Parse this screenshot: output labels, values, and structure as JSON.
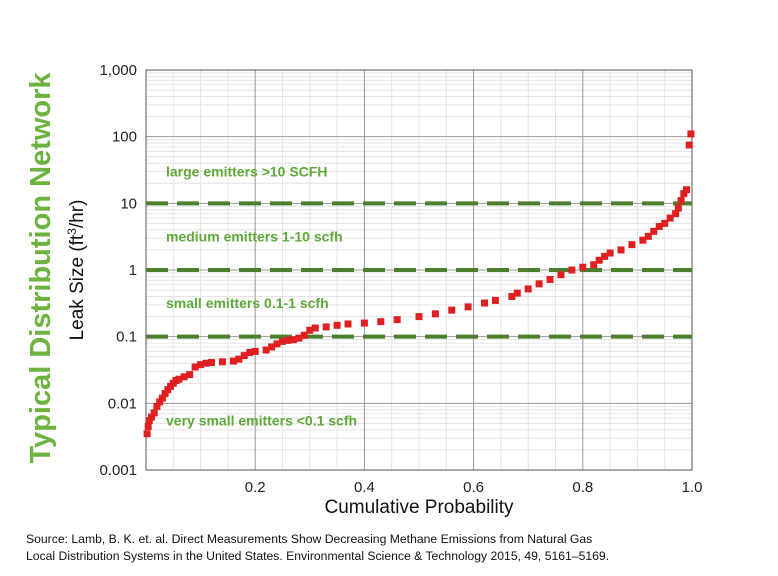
{
  "side_title": "Typical Distribution Network",
  "source_lines": [
    "Source: Lamb, B. K. et. al. Direct Measurements Show Decreasing Methane Emissions from Natural Gas",
    "Local Distribution Systems in the United States. Environmental Science & Technology 2015, 49, 5161–5169."
  ],
  "colors": {
    "title_green": "#6db33f",
    "band_green": "#4a7f2b",
    "annotation_green": "#5fa83a",
    "series_red": "#e02020"
  },
  "chart_data": {
    "type": "scatter",
    "xlabel": "Cumulative Probability",
    "ylabel_main": "Leak Size (ft",
    "ylabel_sup": "3",
    "ylabel_tail": "/hr)",
    "xlim": [
      0,
      1
    ],
    "ylim": [
      0.001,
      1000
    ],
    "yscale": "log",
    "grid": true,
    "xticks": [
      0.2,
      0.4,
      0.6,
      0.8,
      1.0
    ],
    "xtick_labels": [
      "0.2",
      "0.4",
      "0.6",
      "0.8",
      "1.0"
    ],
    "yticks": [
      0.001,
      0.01,
      0.1,
      1,
      10,
      100,
      1000
    ],
    "ytick_labels": [
      "0.001",
      "0.01",
      "0.1",
      "1",
      "10",
      "100",
      "1,000"
    ],
    "thresholds": [
      0.1,
      1,
      10
    ],
    "annotations": [
      {
        "text": "large emitters  >10 SCFH",
        "y": 30
      },
      {
        "text": "medium emitters  1-10 scfh",
        "y": 3.2
      },
      {
        "text": "small emitters  0.1-1 scfh",
        "y": 0.32
      },
      {
        "text": "very small emitters  <0.1 scfh",
        "y": 0.0055
      }
    ],
    "series": [
      {
        "points": [
          [
            0.002,
            0.0035
          ],
          [
            0.004,
            0.0045
          ],
          [
            0.006,
            0.0055
          ],
          [
            0.01,
            0.0062
          ],
          [
            0.015,
            0.0072
          ],
          [
            0.02,
            0.009
          ],
          [
            0.025,
            0.0105
          ],
          [
            0.03,
            0.012
          ],
          [
            0.035,
            0.014
          ],
          [
            0.04,
            0.016
          ],
          [
            0.045,
            0.018
          ],
          [
            0.05,
            0.02
          ],
          [
            0.055,
            0.022
          ],
          [
            0.06,
            0.023
          ],
          [
            0.07,
            0.025
          ],
          [
            0.08,
            0.027
          ],
          [
            0.09,
            0.035
          ],
          [
            0.1,
            0.038
          ],
          [
            0.11,
            0.04
          ],
          [
            0.12,
            0.041
          ],
          [
            0.14,
            0.042
          ],
          [
            0.16,
            0.043
          ],
          [
            0.17,
            0.046
          ],
          [
            0.18,
            0.052
          ],
          [
            0.19,
            0.058
          ],
          [
            0.2,
            0.06
          ],
          [
            0.22,
            0.063
          ],
          [
            0.23,
            0.07
          ],
          [
            0.24,
            0.078
          ],
          [
            0.25,
            0.085
          ],
          [
            0.26,
            0.088
          ],
          [
            0.27,
            0.09
          ],
          [
            0.28,
            0.095
          ],
          [
            0.29,
            0.105
          ],
          [
            0.3,
            0.125
          ],
          [
            0.31,
            0.135
          ],
          [
            0.33,
            0.14
          ],
          [
            0.35,
            0.148
          ],
          [
            0.37,
            0.155
          ],
          [
            0.4,
            0.16
          ],
          [
            0.43,
            0.168
          ],
          [
            0.46,
            0.18
          ],
          [
            0.5,
            0.2
          ],
          [
            0.53,
            0.22
          ],
          [
            0.56,
            0.25
          ],
          [
            0.59,
            0.28
          ],
          [
            0.62,
            0.32
          ],
          [
            0.64,
            0.35
          ],
          [
            0.67,
            0.4
          ],
          [
            0.68,
            0.45
          ],
          [
            0.7,
            0.52
          ],
          [
            0.72,
            0.62
          ],
          [
            0.74,
            0.72
          ],
          [
            0.76,
            0.85
          ],
          [
            0.78,
            1.0
          ],
          [
            0.8,
            1.1
          ],
          [
            0.82,
            1.2
          ],
          [
            0.83,
            1.4
          ],
          [
            0.84,
            1.6
          ],
          [
            0.85,
            1.8
          ],
          [
            0.87,
            2.0
          ],
          [
            0.89,
            2.4
          ],
          [
            0.91,
            2.8
          ],
          [
            0.92,
            3.2
          ],
          [
            0.93,
            3.8
          ],
          [
            0.94,
            4.5
          ],
          [
            0.95,
            5.0
          ],
          [
            0.96,
            6.0
          ],
          [
            0.97,
            7.0
          ],
          [
            0.975,
            8.5
          ],
          [
            0.98,
            11
          ],
          [
            0.985,
            14
          ],
          [
            0.99,
            16
          ],
          [
            0.995,
            75
          ],
          [
            0.998,
            110
          ]
        ]
      }
    ]
  }
}
